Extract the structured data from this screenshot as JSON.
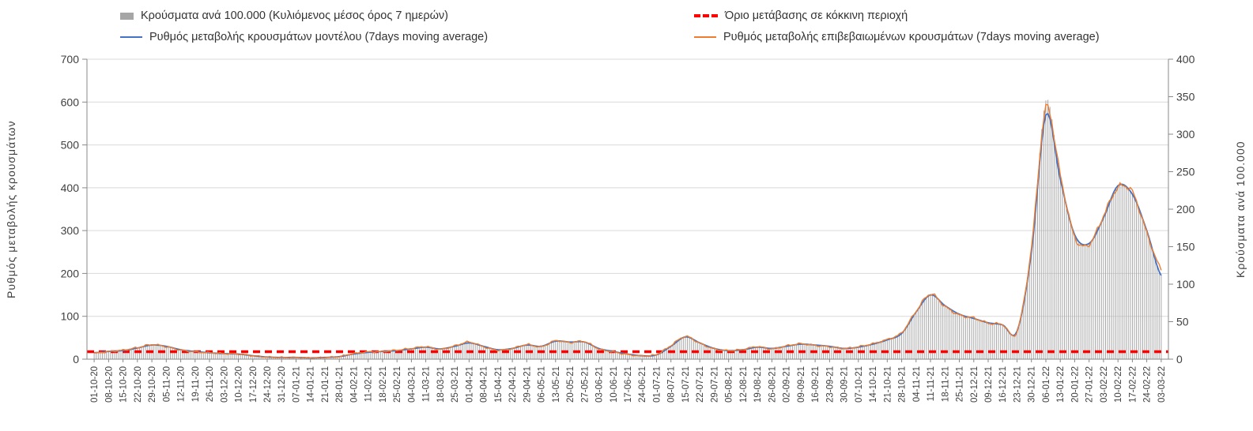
{
  "chart_data": {
    "type": "combo",
    "title": "",
    "x_labels": [
      "01-10-20",
      "08-10-20",
      "15-10-20",
      "22-10-20",
      "29-10-20",
      "05-11-20",
      "12-11-20",
      "19-11-20",
      "26-11-20",
      "03-12-20",
      "10-12-20",
      "17-12-20",
      "24-12-20",
      "31-12-20",
      "07-01-21",
      "14-01-21",
      "21-01-21",
      "28-01-21",
      "04-02-21",
      "11-02-21",
      "18-02-21",
      "25-02-21",
      "04-03-21",
      "11-03-21",
      "18-03-21",
      "25-03-21",
      "01-04-21",
      "08-04-21",
      "15-04-21",
      "22-04-21",
      "29-04-21",
      "06-05-21",
      "13-05-21",
      "20-05-21",
      "27-05-21",
      "03-06-21",
      "10-06-21",
      "17-06-21",
      "24-06-21",
      "01-07-21",
      "08-07-21",
      "15-07-21",
      "22-07-21",
      "29-07-21",
      "05-08-21",
      "12-08-21",
      "19-08-21",
      "26-08-21",
      "02-09-21",
      "09-09-21",
      "16-09-21",
      "23-09-21",
      "30-09-21",
      "07-10-21",
      "14-10-21",
      "21-10-21",
      "28-10-21",
      "04-11-21",
      "11-11-21",
      "18-11-21",
      "25-11-21",
      "02-12-21",
      "09-12-21",
      "16-12-21",
      "23-12-21",
      "30-12-21",
      "06-01-22",
      "13-01-22",
      "20-01-22",
      "27-01-22",
      "03-02-22",
      "10-02-22",
      "17-02-22",
      "24-02-22",
      "03-03-22"
    ],
    "series": [
      {
        "name": "Κρούσματα ανά 100.000 (Κυλιόμενος μέσος όρος 7 ημερών)",
        "type": "bar",
        "axis": "right",
        "color": "#a6a6a6",
        "values": [
          9,
          10,
          11,
          15,
          19,
          17,
          13,
          10,
          9,
          7,
          7,
          5,
          3,
          2,
          2,
          2,
          2,
          3,
          7,
          9,
          10,
          11,
          14,
          16,
          14,
          17,
          22,
          17,
          13,
          14,
          19,
          17,
          24,
          23,
          23,
          14,
          10,
          7,
          5,
          6,
          17,
          30,
          22,
          14,
          11,
          13,
          16,
          14,
          17,
          20,
          19,
          17,
          14,
          16,
          20,
          26,
          34,
          63,
          86,
          71,
          60,
          54,
          49,
          46,
          37,
          143,
          345,
          240,
          166,
          154,
          189,
          231,
          220,
          171,
          111
        ]
      },
      {
        "name": "Ρυθμός μεταβολής κρουσμάτων μοντέλου (7days moving average)",
        "type": "line",
        "axis": "left",
        "color": "#4472c4",
        "values": [
          15,
          18,
          20,
          26,
          33,
          30,
          22,
          18,
          15,
          13,
          12,
          8,
          5,
          4,
          4,
          3,
          4,
          6,
          12,
          16,
          18,
          20,
          24,
          28,
          24,
          30,
          38,
          30,
          22,
          25,
          33,
          30,
          42,
          40,
          40,
          25,
          18,
          12,
          8,
          10,
          30,
          52,
          38,
          25,
          20,
          22,
          28,
          25,
          30,
          35,
          33,
          30,
          25,
          28,
          35,
          45,
          60,
          110,
          150,
          125,
          105,
          95,
          85,
          80,
          65,
          250,
          570,
          420,
          290,
          270,
          330,
          405,
          385,
          300,
          195
        ]
      },
      {
        "name": "Ρυθμός μεταβολής επιβεβαιωμένων κρουσμάτων (7days moving average)",
        "type": "line",
        "axis": "left",
        "color": "#ed7d31",
        "values": [
          14,
          18,
          21,
          27,
          34,
          29,
          21,
          17,
          15,
          13,
          12,
          8,
          5,
          4,
          4,
          3,
          4,
          6,
          13,
          17,
          18,
          21,
          25,
          29,
          23,
          31,
          40,
          29,
          21,
          25,
          34,
          29,
          43,
          39,
          41,
          24,
          17,
          11,
          8,
          11,
          32,
          53,
          37,
          24,
          20,
          23,
          29,
          24,
          31,
          36,
          32,
          29,
          25,
          29,
          36,
          46,
          62,
          112,
          152,
          123,
          103,
          96,
          84,
          81,
          64,
          260,
          585,
          430,
          285,
          268,
          335,
          400,
          390,
          295,
          210
        ]
      },
      {
        "name": "Όριο μετάβασης σε κόκκινη περιοχή",
        "type": "threshold-line",
        "axis": "right",
        "color": "#ff0000",
        "value": 10
      }
    ],
    "left_axis": {
      "label": "Ρυθμός μεταβολής κρουσμάτων",
      "min": 0,
      "max": 700,
      "step": 100
    },
    "right_axis": {
      "label": "Κρούσματα ανά 100.000",
      "min": 0,
      "max": 400,
      "step": 50
    },
    "grid": true,
    "gridline_color": "#d9d9d9",
    "axis_line_color": "#898989",
    "background": "#ffffff",
    "legend_position": "top"
  }
}
